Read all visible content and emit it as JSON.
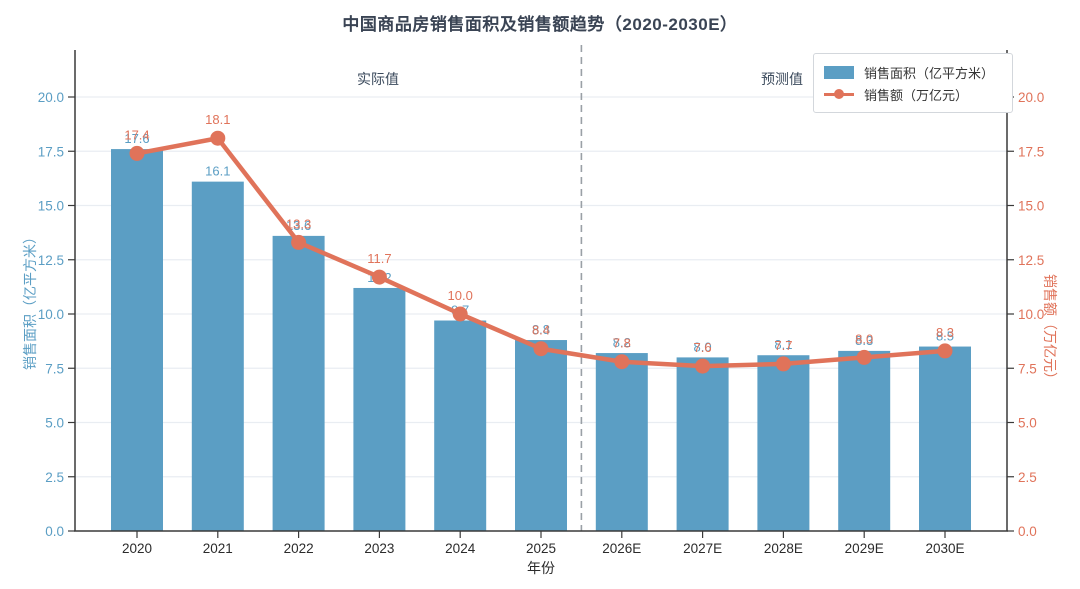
{
  "title": "中国商品房销售面积及销售额趋势（2020-2030E）",
  "annotations": {
    "actual": "实际值",
    "forecast": "预测值"
  },
  "xlabel": "年份",
  "colors": {
    "bar": "#5b9ec4",
    "line": "#e0735a",
    "left_axis_text": "#5b9ec4",
    "right_axis_text": "#e0735a",
    "xtick_text": "#2b2b2b",
    "spine": "#3a3a3a",
    "grid": "#e9edf2",
    "divider": "#9aa0a6",
    "annotation_text": "#3b4a5c"
  },
  "chart_data": {
    "type": "bar",
    "title": "中国商品房销售面积及销售额趋势（2020-2030E）",
    "categories": [
      "2020",
      "2021",
      "2022",
      "2023",
      "2024",
      "2025",
      "2026E",
      "2027E",
      "2028E",
      "2029E",
      "2030E"
    ],
    "series": [
      {
        "name": "销售面积（亿平方米）",
        "type": "bar",
        "axis": "left",
        "values": [
          17.6,
          16.1,
          13.6,
          11.2,
          9.7,
          8.8,
          8.2,
          8.0,
          8.1,
          8.3,
          8.5
        ]
      },
      {
        "name": "销售额（万亿元）",
        "type": "line",
        "axis": "right",
        "values": [
          17.4,
          18.1,
          13.3,
          11.7,
          10.0,
          8.4,
          7.8,
          7.6,
          7.7,
          8.0,
          8.3
        ]
      }
    ],
    "xlabel": "年份",
    "left_ylabel": "销售面积（亿平方米）",
    "right_ylabel": "销售额（万亿元）",
    "yticks": [
      0.0,
      2.5,
      5.0,
      7.5,
      10.0,
      12.5,
      15.0,
      17.5,
      20.0
    ],
    "ylim": [
      0,
      22.2
    ],
    "grid": "horizontal",
    "legend_position": "top-right",
    "divider_between": [
      "2025",
      "2026E"
    ],
    "divider_style": "dashed"
  }
}
